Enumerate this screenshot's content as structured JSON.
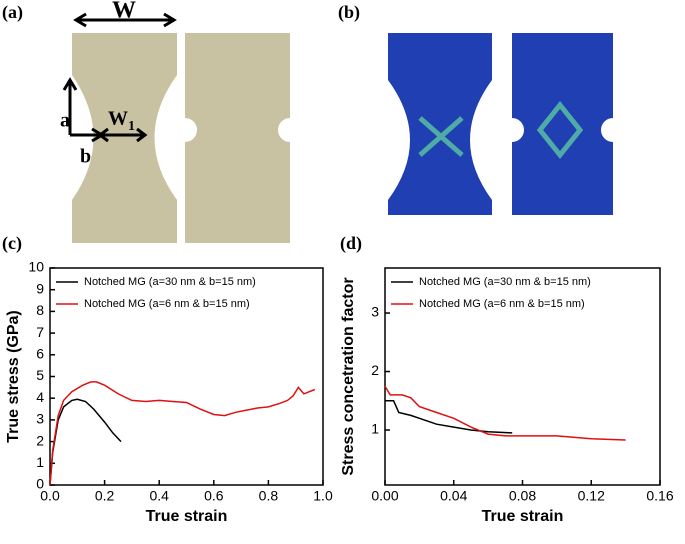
{
  "figure_labels": [
    "(a)",
    "(b)"
  ],
  "diagram": {
    "width": "W",
    "width_1": "W",
    "width_1_sub": "1",
    "notch_depth": "a",
    "notch_height": "b"
  },
  "chart_data": [
    {
      "type": "line",
      "label": "(c)",
      "x_label": "True strain",
      "y_label": "True stress (GPa)",
      "xlim": [
        0,
        1.0
      ],
      "xticks": [
        {
          "value": 0,
          "label": "0.0"
        },
        0.2,
        0.4,
        0.6,
        0.8,
        {
          "value": 1.0,
          "label": "1.0"
        }
      ],
      "ylim": [
        0,
        10
      ],
      "yticks": [
        0,
        1,
        2,
        3,
        4,
        5,
        6,
        7,
        8,
        9,
        10
      ],
      "legend": "upper left",
      "series": [
        {
          "name": "Notched MG (a=30 nm & b=15 nm)",
          "color": "#000000",
          "x": [
            0,
            0.01,
            0.03,
            0.05,
            0.08,
            0.1,
            0.13,
            0.16,
            0.2,
            0.23,
            0.26
          ],
          "values": [
            0,
            1.5,
            3.0,
            3.6,
            3.9,
            3.95,
            3.85,
            3.5,
            2.9,
            2.4,
            2.0
          ]
        },
        {
          "name": "Notched MG (a=6 nm & b=15 nm)",
          "color": "#e01010",
          "x": [
            0,
            0.01,
            0.03,
            0.05,
            0.08,
            0.12,
            0.15,
            0.17,
            0.2,
            0.25,
            0.3,
            0.35,
            0.4,
            0.45,
            0.5,
            0.55,
            0.6,
            0.64,
            0.68,
            0.72,
            0.76,
            0.8,
            0.84,
            0.87,
            0.89,
            0.91,
            0.93,
            0.95,
            0.97
          ],
          "values": [
            0,
            1.6,
            3.2,
            3.9,
            4.3,
            4.6,
            4.75,
            4.75,
            4.6,
            4.2,
            3.9,
            3.85,
            3.9,
            3.85,
            3.8,
            3.5,
            3.25,
            3.2,
            3.35,
            3.45,
            3.55,
            3.6,
            3.75,
            3.9,
            4.1,
            4.5,
            4.2,
            4.3,
            4.4
          ]
        }
      ]
    },
    {
      "type": "line",
      "label": "(d)",
      "x_label": "True strain",
      "y_label": "Stress concetration factor",
      "xlim": [
        0,
        0.16
      ],
      "xticks": [
        {
          "value": 0,
          "label": "0.00"
        },
        0.04,
        0.08,
        0.12,
        0.16
      ],
      "ylim": [
        0.06,
        3.77
      ],
      "yticks": [
        1,
        2,
        3
      ],
      "legend": "upper left",
      "series": [
        {
          "name": "Notched MG (a=30 nm & b=15 nm)",
          "color": "#000000",
          "x": [
            0,
            0.005,
            0.008,
            0.015,
            0.02,
            0.03,
            0.04,
            0.05,
            0.06,
            0.074
          ],
          "values": [
            1.5,
            1.5,
            1.3,
            1.25,
            1.2,
            1.1,
            1.05,
            1.0,
            0.97,
            0.95
          ]
        },
        {
          "name": "Notched MG (a=6 nm & b=15 nm)",
          "color": "#e01010",
          "x": [
            0,
            0.003,
            0.01,
            0.015,
            0.02,
            0.03,
            0.04,
            0.05,
            0.06,
            0.07,
            0.08,
            0.1,
            0.12,
            0.14
          ],
          "values": [
            1.75,
            1.6,
            1.6,
            1.55,
            1.4,
            1.3,
            1.2,
            1.05,
            0.93,
            0.9,
            0.9,
            0.9,
            0.85,
            0.83
          ]
        }
      ]
    }
  ]
}
